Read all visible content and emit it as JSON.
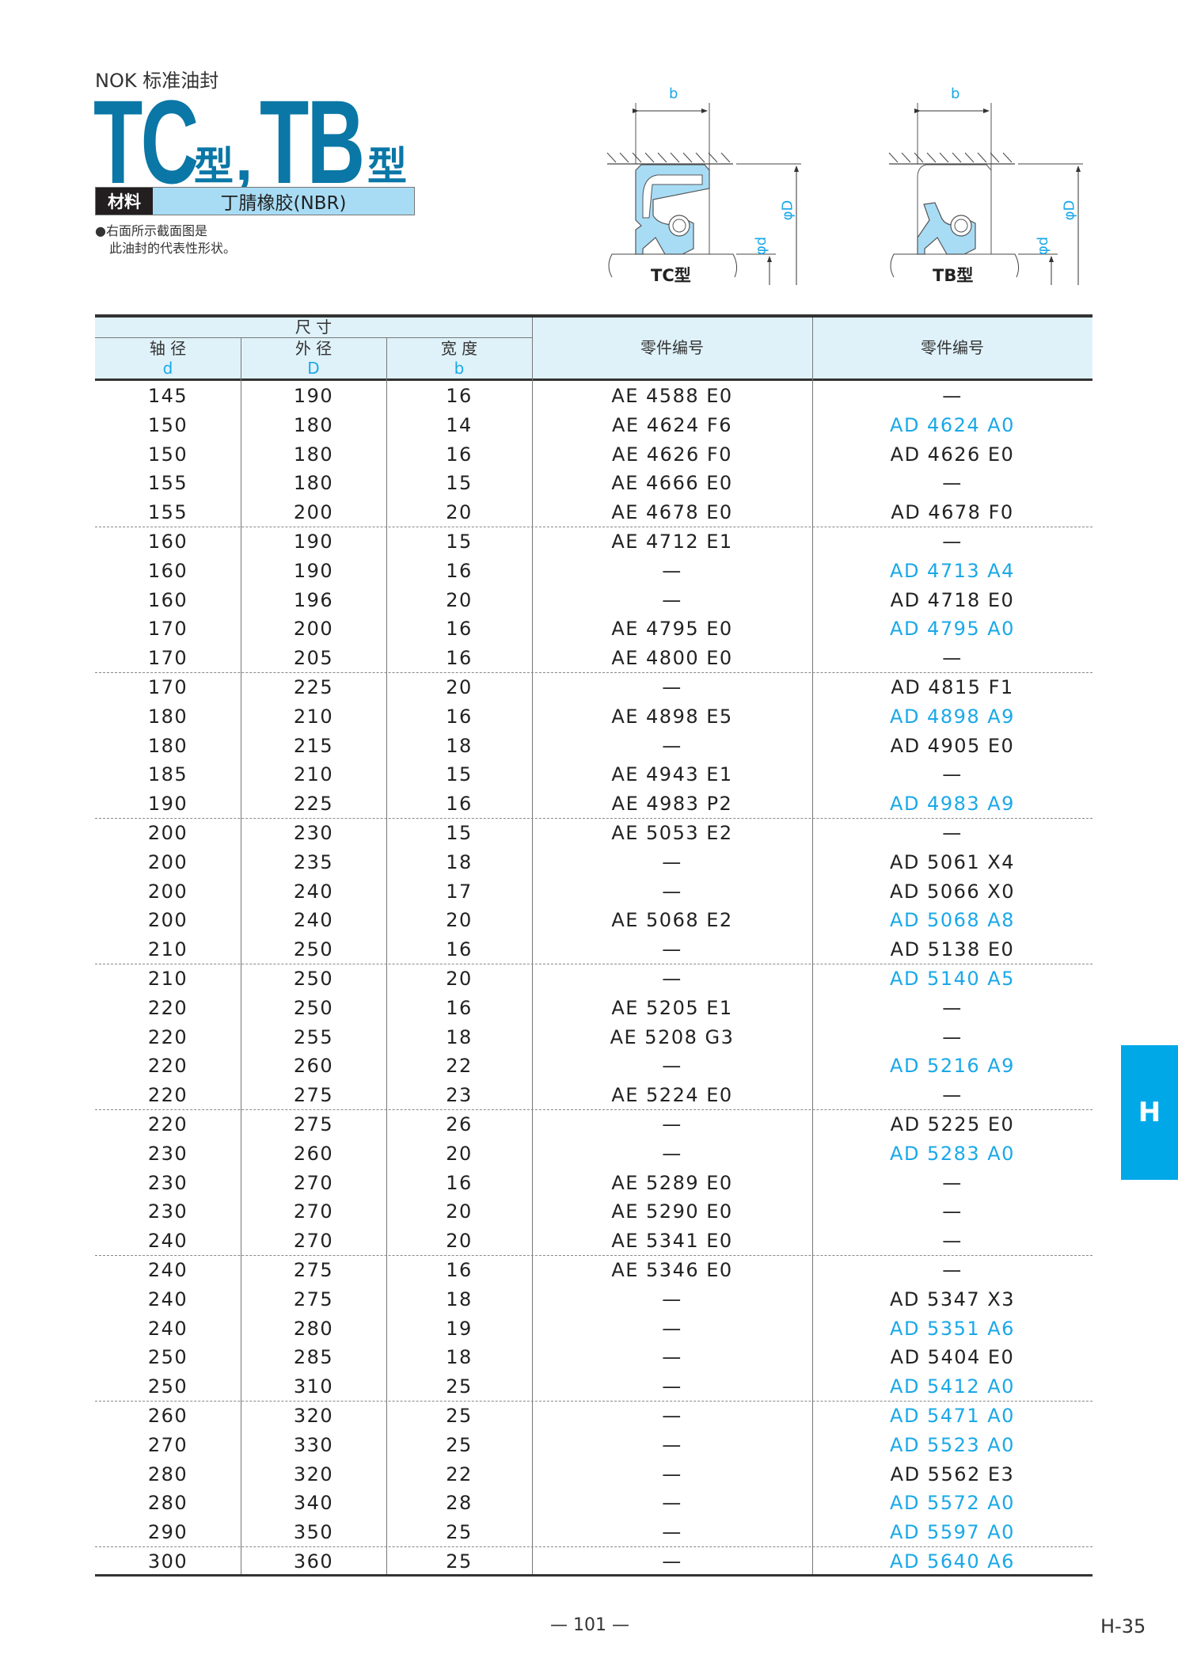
{
  "header": {
    "brand": "NOK 标准油封",
    "title_part1": "TC",
    "title_suffix1": "型",
    "comma": ",",
    "title_part2": "TB",
    "title_suffix2": "型",
    "material_label": "材料",
    "material_value": "丁腈橡胶(NBR)",
    "note_line1": "●右面所示截面图是",
    "note_line2": "此油封的代表性形状。"
  },
  "diagrams": [
    {
      "label": "TC型",
      "dim_b": "b",
      "dim_D": "φD",
      "dim_d": "φd"
    },
    {
      "label": "TB型",
      "dim_b": "b",
      "dim_D": "φD",
      "dim_d": "φd"
    }
  ],
  "colors": {
    "title": "#0a77a6",
    "highlight": "#1aa8e8",
    "header_bg": "#dff2fa",
    "material_bg": "#a8dcf5",
    "tab": "#00a8e8"
  },
  "table": {
    "group_header": "尺 寸",
    "columns": [
      {
        "label": "轴 径",
        "symbol": "d"
      },
      {
        "label": "外 径",
        "symbol": "D"
      },
      {
        "label": "宽 度",
        "symbol": "b"
      },
      {
        "label": "零件编号"
      },
      {
        "label": "零件编号"
      }
    ],
    "rows": [
      {
        "d": "145",
        "D": "190",
        "b": "16",
        "tc": "AE 4588 E0",
        "tb": "—",
        "tb_blue": false
      },
      {
        "d": "150",
        "D": "180",
        "b": "14",
        "tc": "AE 4624 F6",
        "tb": "AD 4624 A0",
        "tb_blue": true
      },
      {
        "d": "150",
        "D": "180",
        "b": "16",
        "tc": "AE 4626 F0",
        "tb": "AD 4626 E0",
        "tb_blue": false
      },
      {
        "d": "155",
        "D": "180",
        "b": "15",
        "tc": "AE 4666 E0",
        "tb": "—",
        "tb_blue": false
      },
      {
        "d": "155",
        "D": "200",
        "b": "20",
        "tc": "AE 4678 E0",
        "tb": "AD 4678 F0",
        "tb_blue": false
      },
      {
        "d": "160",
        "D": "190",
        "b": "15",
        "tc": "AE 4712 E1",
        "tb": "—",
        "tb_blue": false
      },
      {
        "d": "160",
        "D": "190",
        "b": "16",
        "tc": "—",
        "tb": "AD 4713 A4",
        "tb_blue": true
      },
      {
        "d": "160",
        "D": "196",
        "b": "20",
        "tc": "—",
        "tb": "AD 4718 E0",
        "tb_blue": false
      },
      {
        "d": "170",
        "D": "200",
        "b": "16",
        "tc": "AE 4795 E0",
        "tb": "AD 4795 A0",
        "tb_blue": true
      },
      {
        "d": "170",
        "D": "205",
        "b": "16",
        "tc": "AE 4800 E0",
        "tb": "—",
        "tb_blue": false
      },
      {
        "d": "170",
        "D": "225",
        "b": "20",
        "tc": "—",
        "tb": "AD 4815 F1",
        "tb_blue": false
      },
      {
        "d": "180",
        "D": "210",
        "b": "16",
        "tc": "AE 4898 E5",
        "tb": "AD 4898 A9",
        "tb_blue": true
      },
      {
        "d": "180",
        "D": "215",
        "b": "18",
        "tc": "—",
        "tb": "AD 4905 E0",
        "tb_blue": false
      },
      {
        "d": "185",
        "D": "210",
        "b": "15",
        "tc": "AE 4943 E1",
        "tb": "—",
        "tb_blue": false
      },
      {
        "d": "190",
        "D": "225",
        "b": "16",
        "tc": "AE 4983 P2",
        "tb": "AD 4983 A9",
        "tb_blue": true
      },
      {
        "d": "200",
        "D": "230",
        "b": "15",
        "tc": "AE 5053 E2",
        "tb": "—",
        "tb_blue": false
      },
      {
        "d": "200",
        "D": "235",
        "b": "18",
        "tc": "—",
        "tb": "AD 5061 X4",
        "tb_blue": false
      },
      {
        "d": "200",
        "D": "240",
        "b": "17",
        "tc": "—",
        "tb": "AD 5066 X0",
        "tb_blue": false
      },
      {
        "d": "200",
        "D": "240",
        "b": "20",
        "tc": "AE 5068 E2",
        "tb": "AD 5068 A8",
        "tb_blue": true
      },
      {
        "d": "210",
        "D": "250",
        "b": "16",
        "tc": "—",
        "tb": "AD 5138 E0",
        "tb_blue": false
      },
      {
        "d": "210",
        "D": "250",
        "b": "20",
        "tc": "—",
        "tb": "AD 5140 A5",
        "tb_blue": true
      },
      {
        "d": "220",
        "D": "250",
        "b": "16",
        "tc": "AE 5205 E1",
        "tb": "—",
        "tb_blue": false
      },
      {
        "d": "220",
        "D": "255",
        "b": "18",
        "tc": "AE 5208 G3",
        "tb": "—",
        "tb_blue": false
      },
      {
        "d": "220",
        "D": "260",
        "b": "22",
        "tc": "—",
        "tb": "AD 5216 A9",
        "tb_blue": true
      },
      {
        "d": "220",
        "D": "275",
        "b": "23",
        "tc": "AE 5224 E0",
        "tb": "—",
        "tb_blue": false
      },
      {
        "d": "220",
        "D": "275",
        "b": "26",
        "tc": "—",
        "tb": "AD 5225 E0",
        "tb_blue": false
      },
      {
        "d": "230",
        "D": "260",
        "b": "20",
        "tc": "—",
        "tb": "AD 5283 A0",
        "tb_blue": true
      },
      {
        "d": "230",
        "D": "270",
        "b": "16",
        "tc": "AE 5289 E0",
        "tb": "—",
        "tb_blue": false
      },
      {
        "d": "230",
        "D": "270",
        "b": "20",
        "tc": "AE 5290 E0",
        "tb": "—",
        "tb_blue": false
      },
      {
        "d": "240",
        "D": "270",
        "b": "20",
        "tc": "AE 5341 E0",
        "tb": "—",
        "tb_blue": false
      },
      {
        "d": "240",
        "D": "275",
        "b": "16",
        "tc": "AE 5346 E0",
        "tb": "—",
        "tb_blue": false
      },
      {
        "d": "240",
        "D": "275",
        "b": "18",
        "tc": "—",
        "tb": "AD 5347 X3",
        "tb_blue": false
      },
      {
        "d": "240",
        "D": "280",
        "b": "19",
        "tc": "—",
        "tb": "AD 5351 A6",
        "tb_blue": true
      },
      {
        "d": "250",
        "D": "285",
        "b": "18",
        "tc": "—",
        "tb": "AD 5404 E0",
        "tb_blue": false
      },
      {
        "d": "250",
        "D": "310",
        "b": "25",
        "tc": "—",
        "tb": "AD 5412 A0",
        "tb_blue": true
      },
      {
        "d": "260",
        "D": "320",
        "b": "25",
        "tc": "—",
        "tb": "AD 5471 A0",
        "tb_blue": true
      },
      {
        "d": "270",
        "D": "330",
        "b": "25",
        "tc": "—",
        "tb": "AD 5523 A0",
        "tb_blue": true
      },
      {
        "d": "280",
        "D": "320",
        "b": "22",
        "tc": "—",
        "tb": "AD 5562 E3",
        "tb_blue": false
      },
      {
        "d": "280",
        "D": "340",
        "b": "28",
        "tc": "—",
        "tb": "AD 5572 A0",
        "tb_blue": true
      },
      {
        "d": "290",
        "D": "350",
        "b": "25",
        "tc": "—",
        "tb": "AD 5597 A0",
        "tb_blue": true
      },
      {
        "d": "300",
        "D": "360",
        "b": "25",
        "tc": "—",
        "tb": "AD 5640 A6",
        "tb_blue": true
      }
    ]
  },
  "side_tab": "H",
  "footer": {
    "page_number": "— 101 —",
    "page_ref": "H-35"
  }
}
